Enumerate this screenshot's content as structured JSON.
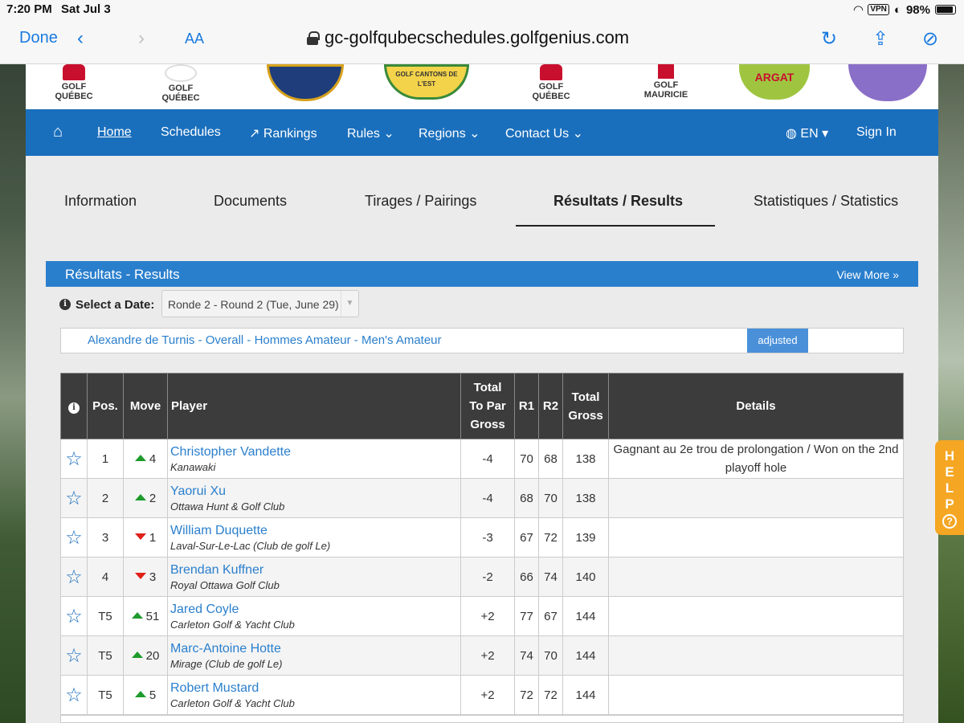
{
  "status": {
    "time": "7:20 PM",
    "date": "Sat Jul 3",
    "vpn": "VPN",
    "battery": "98%"
  },
  "browser": {
    "done": "Done",
    "text_size": "AA",
    "url": "gc-golfqubecschedules.golfgenius.com"
  },
  "logos": [
    {
      "label": "GOLF QUÉBEC"
    },
    {
      "label": "GOLF QUÉBEC"
    },
    {
      "label": ""
    },
    {
      "label": "GOLF CANTONS DE L'EST"
    },
    {
      "label": "GOLF QUÉBEC"
    },
    {
      "label": "GOLF MAURICIE"
    },
    {
      "label": "ARGAT"
    },
    {
      "label": ""
    }
  ],
  "nav": {
    "home": "Home",
    "schedules": "Schedules",
    "rankings": "Rankings",
    "rules": "Rules",
    "regions": "Regions",
    "contact": "Contact Us",
    "language": "EN",
    "sign_in": "Sign In"
  },
  "tabs": {
    "information": "Information",
    "documents": "Documents",
    "pairings": "Tirages / Pairings",
    "results": "Résultats / Results",
    "statistics": "Statistiques / Statistics"
  },
  "results_header": {
    "title": "Résultats - Results",
    "view_more": "View More »"
  },
  "date_filter": {
    "label": "Select a Date:",
    "value": "Ronde 2 - Round 2 (Tue, June 29)"
  },
  "division": {
    "name": "Alexandre de Turnis - Overall - Hommes Amateur - Men's Amateur",
    "badge": "adjusted"
  },
  "table": {
    "headers": {
      "pos": "Pos.",
      "move": "Move",
      "player": "Player",
      "par_l1": "Total",
      "par_l2": "To Par",
      "par_l3": "Gross",
      "r1": "R1",
      "r2": "R2",
      "gross_l1": "Total",
      "gross_l2": "Gross",
      "details": "Details"
    },
    "rows": [
      {
        "pos": "1",
        "dir": "up",
        "move": "4",
        "name": "Christopher Vandette",
        "club": "Kanawaki",
        "to_par": "-4",
        "r1": "70",
        "r2": "68",
        "total": "138",
        "details": "Gagnant au 2e trou de prolongation / Won on the 2nd playoff hole"
      },
      {
        "pos": "2",
        "dir": "up",
        "move": "2",
        "name": "Yaorui Xu",
        "club": "Ottawa Hunt & Golf Club",
        "to_par": "-4",
        "r1": "68",
        "r2": "70",
        "total": "138",
        "details": ""
      },
      {
        "pos": "3",
        "dir": "down",
        "move": "1",
        "name": "William Duquette",
        "club": "Laval-Sur-Le-Lac (Club de golf Le)",
        "to_par": "-3",
        "r1": "67",
        "r2": "72",
        "total": "139",
        "details": ""
      },
      {
        "pos": "4",
        "dir": "down",
        "move": "3",
        "name": "Brendan Kuffner",
        "club": "Royal Ottawa Golf Club",
        "to_par": "-2",
        "r1": "66",
        "r2": "74",
        "total": "140",
        "details": ""
      },
      {
        "pos": "T5",
        "dir": "up",
        "move": "51",
        "name": "Jared Coyle",
        "club": "Carleton Golf & Yacht Club",
        "to_par": "+2",
        "r1": "77",
        "r2": "67",
        "total": "144",
        "details": ""
      },
      {
        "pos": "T5",
        "dir": "up",
        "move": "20",
        "name": "Marc-Antoine Hotte",
        "club": "Mirage (Club de golf Le)",
        "to_par": "+2",
        "r1": "74",
        "r2": "70",
        "total": "144",
        "details": ""
      },
      {
        "pos": "T5",
        "dir": "up",
        "move": "5",
        "name": "Robert Mustard",
        "club": "Carleton Golf & Yacht Club",
        "to_par": "+2",
        "r1": "72",
        "r2": "72",
        "total": "144",
        "details": ""
      }
    ]
  },
  "help": {
    "letters": [
      "H",
      "E",
      "L",
      "P"
    ],
    "icon": "?"
  },
  "colors": {
    "nav": "#1a6fbd",
    "header": "#2a7fcd",
    "link": "#2a7fcd",
    "up": "#1e9b2c",
    "down": "#e0201a",
    "help": "#f5a623"
  }
}
